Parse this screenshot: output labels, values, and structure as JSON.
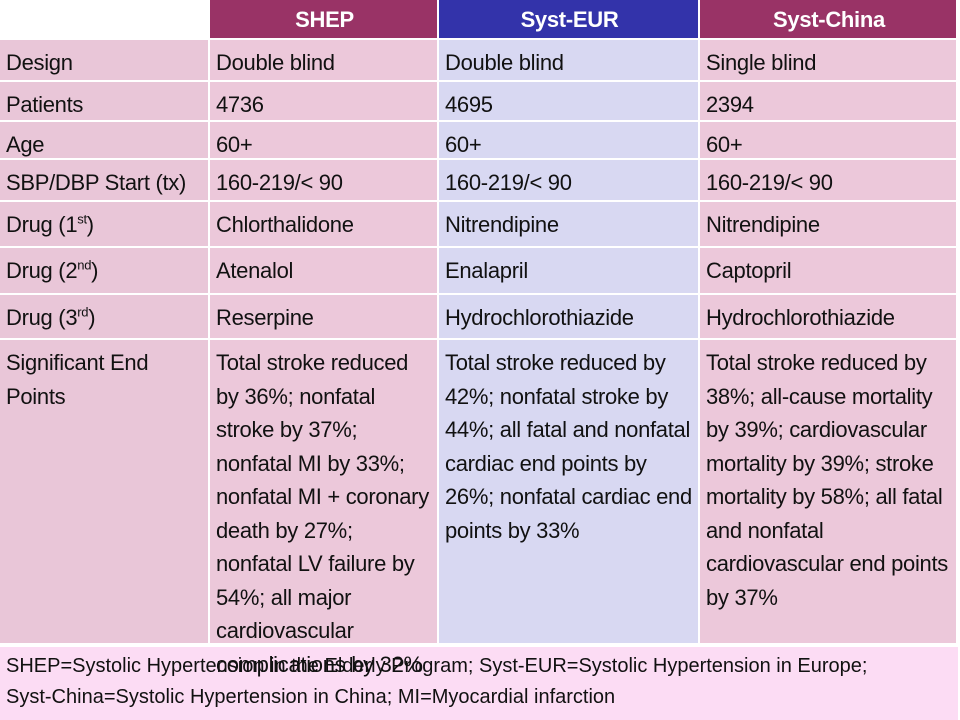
{
  "table": {
    "header": [
      "SHEP",
      "Syst-EUR",
      "Syst-China"
    ],
    "rows": [
      [
        "Design",
        "Double blind",
        "Double blind",
        "Single blind"
      ],
      [
        "Patients",
        "4736",
        "4695",
        "2394"
      ],
      [
        "Age",
        "60+",
        "60+",
        "60+"
      ],
      [
        "SBP/DBP Start (tx)",
        "160-219/< 90",
        "160-219/< 90",
        "160-219/< 90"
      ],
      [
        [
          "Drug (1",
          "st",
          ")"
        ],
        "Chlorthalidone",
        "Nitrendipine",
        "Nitrendipine"
      ],
      [
        [
          "Drug (2",
          "nd",
          ")"
        ],
        "Atenalol",
        "Enalapril",
        "Captopril"
      ],
      [
        [
          "Drug (3",
          "rd",
          ")"
        ],
        "Reserpine",
        "Hydrochlorothiazide",
        "Hydrochlorothiazide"
      ],
      [
        "Significant End Points",
        "Total stroke reduced by 36%; nonfatal stroke by 37%; nonfatal MI by 33%; nonfatal MI + coronary death by 27%; nonfatal LV failure by 54%; all major cardiovascular complications by 32%",
        "Total stroke reduced by 42%; nonfatal stroke by 44%; all fatal and nonfatal cardiac end points by 26%; nonfatal cardiac end points by 33%",
        "Total stroke reduced by 38%; all-cause mortality by 39%; cardiovascular mortality by 39%; stroke mortality by 58%; all fatal and nonfatal cardiovascular end points by 37%"
      ]
    ],
    "footnote": [
      "SHEP=Systolic Hypertension in the Elderly Program; Syst-EUR=Systolic Hypertension in Europe;",
      "Syst-China=Systolic Hypertension in China; MI=Myocardial infarction"
    ]
  }
}
